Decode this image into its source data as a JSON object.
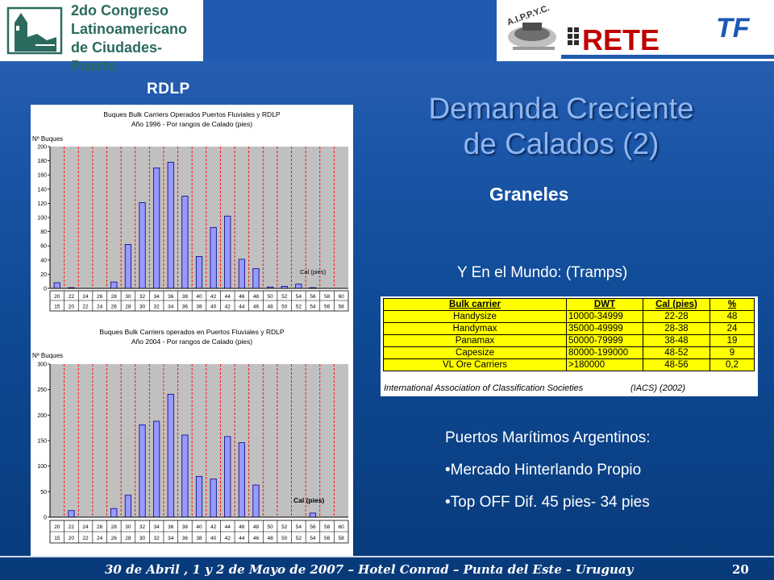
{
  "header": {
    "congress_lines": [
      "2do Congreso",
      "Latinoamericano",
      "de Ciudades-Puerto"
    ],
    "aippyc": "A.I.P.P.Y.C.",
    "rete": "RETE",
    "tf": "TF"
  },
  "rdlp_label": "RDLP",
  "title_lines": [
    "Demanda Creciente",
    "de Calados (2)"
  ],
  "subtitle": "Graneles",
  "mundo_label": "Y En el Mundo: (Tramps)",
  "table": {
    "headers": [
      "Bulk carrier",
      "DWT",
      "Cal (pies)",
      "%"
    ],
    "rows": [
      [
        "Handysize",
        "10000-34999",
        "22-28",
        "48"
      ],
      [
        "Handymax",
        "35000-49999",
        "28-38",
        "24"
      ],
      [
        "Panamax",
        "50000-79999",
        "38-48",
        "19"
      ],
      [
        "Capesize",
        "80000-199000",
        "48-52",
        "9"
      ],
      [
        "VL Ore Carriers",
        ">180000",
        "48-56",
        "0,2"
      ]
    ],
    "source": "International Association of Classification Societies",
    "source_abbr": "(IACS)  (2002)"
  },
  "bullets": {
    "heading": "Puertos Marítimos Argentinos:",
    "items": [
      "•Mercado Hinterlando Propio",
      "•Top OFF Dif. 45 pies- 34 pies"
    ]
  },
  "footer": {
    "text": "30 de Abril , 1 y 2 de Mayo de 2007 – Hotel Conrad – Punta del Este - Uruguay",
    "page": "20"
  },
  "colors": {
    "bar_fill": "#9999ff",
    "plot_bg": "#c0c0c0",
    "gridline": "#ff0000",
    "table_bg": "#ffff00"
  },
  "chart_data": [
    {
      "type": "bar",
      "title": "Buques Bulk Carriers Operados Puertos Fluviales y RDLP",
      "subtitle": "Año 1996 - Por rangos de Calado (pies)",
      "ylabel": "Nº Buques",
      "annotation": "Cal (pies)",
      "ylim": [
        0,
        200
      ],
      "yticks": [
        0,
        20,
        40,
        60,
        80,
        100,
        120,
        140,
        160,
        180,
        200
      ],
      "categories_top": [
        "20",
        "22",
        "24",
        "26",
        "28",
        "30",
        "32",
        "34",
        "36",
        "38",
        "40",
        "42",
        "44",
        "46",
        "48",
        "50",
        "52",
        "54",
        "56",
        "58",
        "60"
      ],
      "categories_bottom": [
        "15",
        "20",
        "22",
        "24",
        "26",
        "28",
        "30",
        "32",
        "34",
        "36",
        "38",
        "40",
        "42",
        "44",
        "46",
        "48",
        "50",
        "52",
        "54",
        "56",
        "58"
      ],
      "values": [
        8,
        1,
        0,
        0,
        9,
        62,
        121,
        170,
        178,
        130,
        45,
        86,
        102,
        41,
        28,
        2,
        3,
        6,
        1,
        0,
        0
      ]
    },
    {
      "type": "bar",
      "title": "Buques Bulk Carriers operados en Puertos Fluviales y RDLP",
      "subtitle": "Año 2004 - Por rangos de Calado (pies)",
      "ylabel": "Nº Buques",
      "annotation": "Cal (pies)",
      "ylim": [
        0,
        300
      ],
      "yticks": [
        0,
        50,
        100,
        150,
        200,
        250,
        300
      ],
      "categories_top": [
        "20",
        "22",
        "24",
        "26",
        "28",
        "30",
        "32",
        "34",
        "36",
        "38",
        "40",
        "42",
        "44",
        "46",
        "48",
        "50",
        "52",
        "54",
        "56",
        "58",
        "60"
      ],
      "categories_bottom": [
        "15",
        "20",
        "22",
        "24",
        "26",
        "28",
        "30",
        "32",
        "34",
        "36",
        "38",
        "40",
        "42",
        "44",
        "46",
        "48",
        "50",
        "52",
        "54",
        "56",
        "58"
      ],
      "values": [
        0,
        13,
        0,
        0,
        17,
        43,
        181,
        188,
        241,
        161,
        80,
        75,
        158,
        146,
        63,
        0,
        0,
        0,
        8,
        0,
        0
      ]
    }
  ]
}
